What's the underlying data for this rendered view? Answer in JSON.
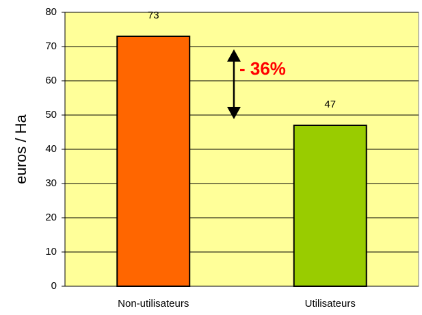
{
  "chart_data": {
    "type": "bar",
    "categories": [
      "Non-utilisateurs",
      "Utilisateurs"
    ],
    "values": [
      73,
      47
    ],
    "colors": [
      "#ff6600",
      "#99cc00"
    ],
    "ylabel": "euros / Ha",
    "annotation": "- 36%",
    "ylim": [
      0,
      80
    ],
    "yticks": [
      0,
      10,
      20,
      30,
      40,
      50,
      60,
      70,
      80
    ],
    "grid": true,
    "background": "#ffff99"
  }
}
